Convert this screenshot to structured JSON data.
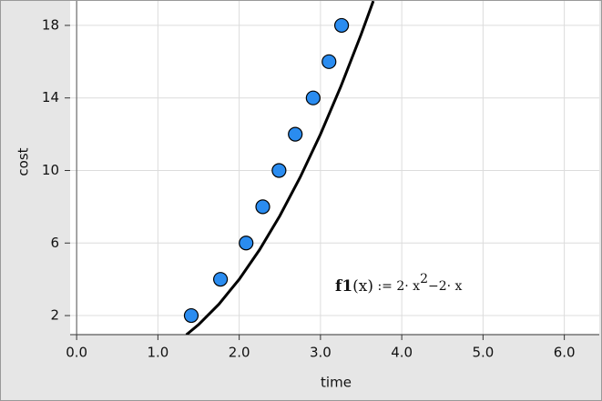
{
  "chart_data": {
    "type": "scatter",
    "x_label": "time",
    "y_label": "cost",
    "x": [
      1.41,
      1.77,
      2.085,
      2.29,
      2.49,
      2.69,
      2.91,
      3.105,
      3.26
    ],
    "values": [
      2,
      4,
      6,
      8,
      10,
      12,
      14,
      16,
      18
    ],
    "color": "#2a8cf0",
    "curve": {
      "color": "#000000",
      "x": [
        1.35,
        1.5,
        1.75,
        2.0,
        2.25,
        2.5,
        2.75,
        3.0,
        3.25,
        3.5,
        3.65
      ],
      "y": [
        0.945,
        1.5,
        2.625,
        4,
        5.625,
        7.5,
        9.625,
        12,
        14.625,
        17.5,
        19.345
      ]
    },
    "annotation": [
      "f1",
      "(x)",
      " := 2· x",
      "2",
      "−2· x"
    ],
    "xlim": [
      -0.08,
      6.43
    ],
    "ylim": [
      0.95,
      19.4
    ],
    "xticks": [
      {
        "value": 0,
        "label": "0.0"
      },
      {
        "value": 1,
        "label": "1.0"
      },
      {
        "value": 2,
        "label": "2.0"
      },
      {
        "value": 3,
        "label": "3.0"
      },
      {
        "value": 4,
        "label": "4.0"
      },
      {
        "value": 5,
        "label": "5.0"
      },
      {
        "value": 6,
        "label": "6.0"
      }
    ],
    "yticks": [
      2,
      6,
      10,
      14,
      18
    ],
    "grid": true
  }
}
